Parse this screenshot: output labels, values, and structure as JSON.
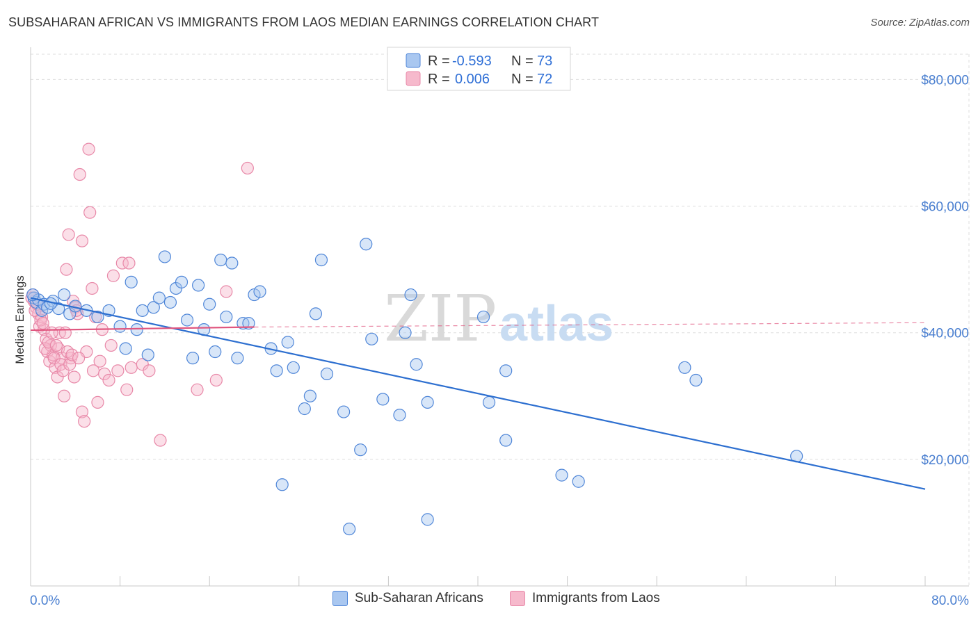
{
  "title": "SUBSAHARAN AFRICAN VS IMMIGRANTS FROM LAOS MEDIAN EARNINGS CORRELATION CHART",
  "source": "Source: ZipAtlas.com",
  "watermark": {
    "zip": "ZIP",
    "atlas": "atlas"
  },
  "colors": {
    "blue_fill": "#a9c7f0",
    "blue_stroke": "#4f86d8",
    "blue_line": "#2d6fd0",
    "pink_fill": "#f6b9cc",
    "pink_stroke": "#e888a8",
    "pink_line": "#e0567f",
    "grid": "#dddddd",
    "tick_text": "#4a7fd0"
  },
  "legend": {
    "rows": [
      {
        "r_label": "R =",
        "r_value": "-0.593",
        "n_label": "N =",
        "n_value": "73"
      },
      {
        "r_label": "R =",
        "r_value": "0.006",
        "n_label": "N =",
        "n_value": "72"
      }
    ]
  },
  "bottom_legend": [
    "Sub-Saharan Africans",
    "Immigrants from Laos"
  ],
  "chart_data": {
    "type": "scatter",
    "xlabel": "",
    "ylabel": "Median Earnings",
    "xlim": [
      0,
      80
    ],
    "ylim": [
      0,
      84000
    ],
    "x_tick_labels": [
      "0.0%",
      "80.0%"
    ],
    "y_ticks": [
      20000,
      40000,
      60000,
      80000
    ],
    "y_tick_labels": [
      "$20,000",
      "$40,000",
      "$60,000",
      "$80,000"
    ],
    "grid": true,
    "legend_position": "top-center",
    "series": [
      {
        "name": "Sub-Saharan Africans",
        "trend": {
          "x": [
            0,
            80
          ],
          "y": [
            45500,
            15300
          ]
        },
        "points": [
          [
            0.3,
            45500
          ],
          [
            0.5,
            44800
          ],
          [
            0.7,
            45200
          ],
          [
            1.0,
            43500
          ],
          [
            1.2,
            44500
          ],
          [
            1.5,
            44000
          ],
          [
            2.0,
            45000
          ],
          [
            2.5,
            43800
          ],
          [
            3.0,
            46000
          ],
          [
            3.5,
            43000
          ],
          [
            4.0,
            44200
          ],
          [
            5.0,
            43500
          ],
          [
            6.0,
            42500
          ],
          [
            7.0,
            43500
          ],
          [
            8.0,
            41000
          ],
          [
            8.5,
            37500
          ],
          [
            9.0,
            48000
          ],
          [
            9.5,
            40500
          ],
          [
            10.0,
            43500
          ],
          [
            10.5,
            36500
          ],
          [
            11.0,
            44000
          ],
          [
            11.5,
            45500
          ],
          [
            12.0,
            52000
          ],
          [
            12.5,
            44800
          ],
          [
            13.0,
            47000
          ],
          [
            13.5,
            48000
          ],
          [
            14.0,
            42000
          ],
          [
            14.5,
            36000
          ],
          [
            15.0,
            47500
          ],
          [
            15.5,
            40500
          ],
          [
            16.0,
            44500
          ],
          [
            16.5,
            37000
          ],
          [
            17.0,
            51500
          ],
          [
            17.5,
            42500
          ],
          [
            18.0,
            51000
          ],
          [
            18.5,
            36000
          ],
          [
            19.0,
            41500
          ],
          [
            19.5,
            41500
          ],
          [
            20.0,
            46000
          ],
          [
            20.5,
            46500
          ],
          [
            21.5,
            37500
          ],
          [
            22.0,
            34000
          ],
          [
            22.5,
            16000
          ],
          [
            23.0,
            38500
          ],
          [
            23.5,
            34500
          ],
          [
            24.5,
            28000
          ],
          [
            25.0,
            30000
          ],
          [
            25.5,
            43000
          ],
          [
            26.0,
            51500
          ],
          [
            26.5,
            33500
          ],
          [
            28.0,
            27500
          ],
          [
            28.5,
            9000
          ],
          [
            29.5,
            21500
          ],
          [
            30.0,
            54000
          ],
          [
            30.5,
            39000
          ],
          [
            31.5,
            29500
          ],
          [
            33.0,
            27000
          ],
          [
            33.5,
            40000
          ],
          [
            34.0,
            46000
          ],
          [
            34.5,
            35000
          ],
          [
            35.5,
            10500
          ],
          [
            35.5,
            29000
          ],
          [
            40.5,
            42500
          ],
          [
            41.0,
            29000
          ],
          [
            42.5,
            34000
          ],
          [
            42.5,
            23000
          ],
          [
            47.5,
            17500
          ],
          [
            49.0,
            16500
          ],
          [
            58.5,
            34500
          ],
          [
            59.5,
            32500
          ],
          [
            68.5,
            20500
          ],
          [
            0.2,
            46000
          ],
          [
            1.8,
            44600
          ]
        ]
      },
      {
        "name": "Immigrants from Laos",
        "trend": {
          "x": [
            0,
            20
          ],
          "y": [
            40400,
            40900
          ]
        },
        "trend_dashed": {
          "x": [
            20,
            80
          ],
          "y": [
            40900,
            41600
          ]
        },
        "points": [
          [
            0.2,
            46000
          ],
          [
            0.3,
            45000
          ],
          [
            0.5,
            44000
          ],
          [
            0.7,
            43000
          ],
          [
            0.8,
            41000
          ],
          [
            1.0,
            42500
          ],
          [
            1.2,
            40500
          ],
          [
            1.4,
            39000
          ],
          [
            1.5,
            37000
          ],
          [
            1.7,
            35500
          ],
          [
            1.8,
            38000
          ],
          [
            2.0,
            36500
          ],
          [
            2.2,
            34500
          ],
          [
            2.4,
            33000
          ],
          [
            2.5,
            37500
          ],
          [
            2.6,
            40000
          ],
          [
            2.8,
            36000
          ],
          [
            3.0,
            30000
          ],
          [
            3.1,
            40000
          ],
          [
            3.2,
            50000
          ],
          [
            3.4,
            55500
          ],
          [
            3.6,
            36000
          ],
          [
            3.8,
            45000
          ],
          [
            4.0,
            44000
          ],
          [
            4.2,
            43000
          ],
          [
            4.4,
            65000
          ],
          [
            4.6,
            54500
          ],
          [
            4.6,
            27500
          ],
          [
            4.8,
            26000
          ],
          [
            5.0,
            37000
          ],
          [
            5.2,
            69000
          ],
          [
            5.3,
            59000
          ],
          [
            5.5,
            47000
          ],
          [
            5.6,
            34000
          ],
          [
            5.8,
            42500
          ],
          [
            6.0,
            29000
          ],
          [
            6.2,
            35500
          ],
          [
            6.4,
            40500
          ],
          [
            6.6,
            33500
          ],
          [
            7.0,
            32500
          ],
          [
            7.2,
            38000
          ],
          [
            7.4,
            49000
          ],
          [
            7.8,
            34000
          ],
          [
            8.2,
            51000
          ],
          [
            8.6,
            31000
          ],
          [
            8.8,
            51000
          ],
          [
            9.0,
            34500
          ],
          [
            10.0,
            35000
          ],
          [
            10.6,
            34000
          ],
          [
            11.6,
            23000
          ],
          [
            14.9,
            31000
          ],
          [
            16.6,
            32500
          ],
          [
            17.5,
            46500
          ],
          [
            19.4,
            66000
          ],
          [
            0.1,
            45500
          ],
          [
            0.4,
            43500
          ],
          [
            0.6,
            44500
          ],
          [
            0.9,
            42000
          ],
          [
            1.1,
            41500
          ],
          [
            1.3,
            37500
          ],
          [
            1.6,
            38500
          ],
          [
            1.9,
            40000
          ],
          [
            2.1,
            36000
          ],
          [
            2.3,
            38000
          ],
          [
            2.7,
            35000
          ],
          [
            2.9,
            34000
          ],
          [
            3.3,
            37000
          ],
          [
            3.5,
            35000
          ],
          [
            3.7,
            36500
          ],
          [
            3.9,
            33000
          ],
          [
            4.1,
            43500
          ],
          [
            4.3,
            36000
          ]
        ]
      }
    ]
  }
}
